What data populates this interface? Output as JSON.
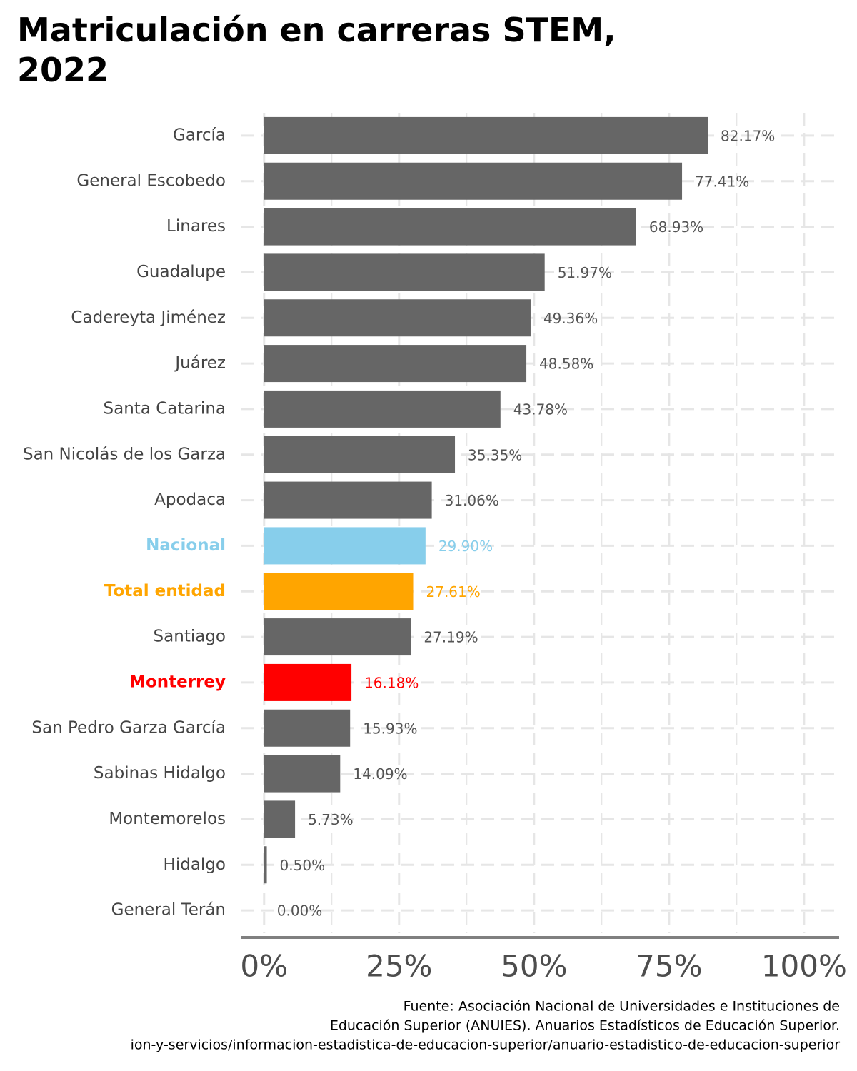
{
  "chart_data": {
    "type": "hbar",
    "title": "Matriculación en carreras STEM, 2022",
    "categories": [
      "García",
      "General Escobedo",
      "Linares",
      "Guadalupe",
      "Cadereyta Jiménez",
      "Juárez",
      "Santa Catarina",
      "San Nicolás de los Garza",
      "Apodaca",
      "Nacional",
      "Total entidad",
      "Santiago",
      "Monterrey",
      "San Pedro Garza García",
      "Sabinas Hidalgo",
      "Montemorelos",
      "Hidalgo",
      "General Terán"
    ],
    "values": [
      82.17,
      77.41,
      68.93,
      51.97,
      49.36,
      48.58,
      43.78,
      35.35,
      31.06,
      29.9,
      27.61,
      27.19,
      16.18,
      15.93,
      14.09,
      5.73,
      0.5,
      0.0
    ],
    "value_labels": [
      "82.17%",
      "77.41%",
      "68.93%",
      "51.97%",
      "49.36%",
      "48.58%",
      "43.78%",
      "35.35%",
      "31.06%",
      "29.90%",
      "27.61%",
      "27.19%",
      "16.18%",
      "15.93%",
      "14.09%",
      "5.73%",
      "0.50%",
      "0.00%"
    ],
    "color": "#666666",
    "colors": [
      "#666666",
      "#666666",
      "#666666",
      "#666666",
      "#666666",
      "#666666",
      "#666666",
      "#666666",
      "#666666",
      "#87ceeb",
      "#ffa500",
      "#666666",
      "#ff0000",
      "#666666",
      "#666666",
      "#666666",
      "#666666",
      "#666666"
    ],
    "xlim": [
      -4.2,
      106.5
    ],
    "xticks": [
      {
        "value": 0,
        "label": "0%"
      },
      {
        "value": 25,
        "label": "25%"
      },
      {
        "value": 50,
        "label": "50%"
      },
      {
        "value": 75,
        "label": "75%"
      },
      {
        "value": 100,
        "label": "100%"
      }
    ],
    "xminor": [
      12.5,
      37.5,
      62.5,
      87.5
    ],
    "grid": true,
    "caption": [
      "Fuente: Asociación Nacional de Universidades e Instituciones de",
      "Educación Superior (ANUIES). Anuarios Estadísticos de Educación Superior.",
      "ion-y-servicios/informacion-estadistica-de-educacion-superior/anuario-estadistico-de-educacion-superior"
    ]
  }
}
